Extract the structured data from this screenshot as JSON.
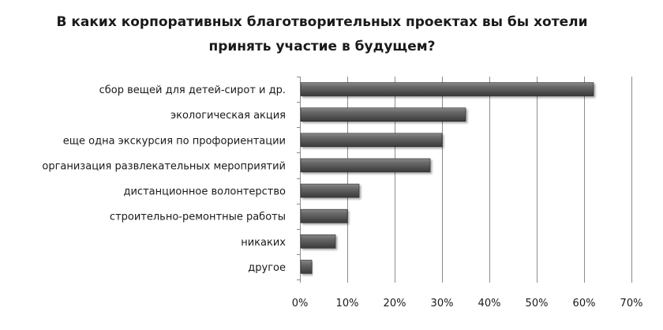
{
  "chart_data": {
    "type": "bar",
    "orientation": "horizontal",
    "title": [
      "В каких корпоративных благотворительных проектах вы бы хотели",
      "принять участие в будущем?"
    ],
    "categories": [
      "сбор вещей для детей-сирот и др.",
      "экологическая акция",
      "еще одна экскурсия по профориентации",
      "организация развлекательных мероприятий",
      "дистанционное волонтерство",
      "строительно-ремонтные работы",
      "никаких",
      "другое"
    ],
    "values": [
      62,
      35,
      30,
      27.5,
      12.5,
      10,
      7.5,
      2.5
    ],
    "xlim": [
      0,
      70
    ],
    "xticks": [
      "0%",
      "10%",
      "20%",
      "30%",
      "40%",
      "50%",
      "60%",
      "70%"
    ],
    "xtick_values": [
      0,
      10,
      20,
      30,
      40,
      50,
      60,
      70
    ],
    "grid": true,
    "legend": "none",
    "bar_color": "#505050"
  }
}
